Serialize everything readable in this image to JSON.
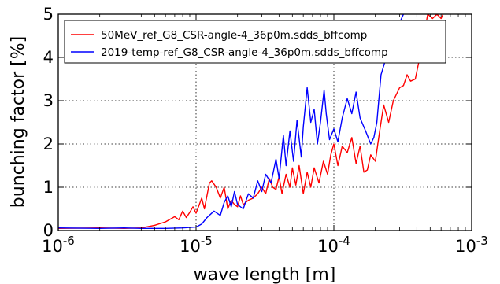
{
  "chart_data": {
    "type": "line",
    "title": "",
    "xlabel": "wave length [m]",
    "ylabel": "bunching factor [%]",
    "xscale": "log",
    "xlim": [
      1e-06,
      0.001
    ],
    "ylim": [
      0,
      5
    ],
    "grid": true,
    "legend_position": "top-left",
    "x_ticks": [
      {
        "base": "10",
        "exp": "-6"
      },
      {
        "base": "10",
        "exp": "-5"
      },
      {
        "base": "10",
        "exp": "-4"
      },
      {
        "base": "10",
        "exp": "-3"
      }
    ],
    "y_ticks": [
      "0",
      "1",
      "2",
      "3",
      "4",
      "5"
    ],
    "series": [
      {
        "name": "50MeV_ref_G8_CSR-angle-4_36p0m.sdds_bffcomp",
        "color": "#ff0000",
        "points": [
          [
            1e-06,
            0.05
          ],
          [
            2e-06,
            0.06
          ],
          [
            3e-06,
            0.05
          ],
          [
            4e-06,
            0.06
          ],
          [
            5e-06,
            0.12
          ],
          [
            6e-06,
            0.2
          ],
          [
            7e-06,
            0.32
          ],
          [
            7.5e-06,
            0.25
          ],
          [
            8e-06,
            0.45
          ],
          [
            8.5e-06,
            0.3
          ],
          [
            9e-06,
            0.42
          ],
          [
            9.5e-06,
            0.55
          ],
          [
            1e-05,
            0.4
          ],
          [
            1.1e-05,
            0.75
          ],
          [
            1.15e-05,
            0.5
          ],
          [
            1.25e-05,
            1.1
          ],
          [
            1.3e-05,
            1.15
          ],
          [
            1.4e-05,
            1.0
          ],
          [
            1.5e-05,
            0.75
          ],
          [
            1.6e-05,
            1.0
          ],
          [
            1.7e-05,
            0.5
          ],
          [
            1.8e-05,
            0.7
          ],
          [
            1.9e-05,
            0.6
          ],
          [
            2e-05,
            0.55
          ],
          [
            2.1e-05,
            0.8
          ],
          [
            2.2e-05,
            0.6
          ],
          [
            2.4e-05,
            0.7
          ],
          [
            2.6e-05,
            0.75
          ],
          [
            2.8e-05,
            0.85
          ],
          [
            3e-05,
            1.0
          ],
          [
            3.2e-05,
            0.85
          ],
          [
            3.4e-05,
            1.2
          ],
          [
            3.6e-05,
            1.0
          ],
          [
            3.8e-05,
            0.95
          ],
          [
            4e-05,
            1.25
          ],
          [
            4.2e-05,
            0.85
          ],
          [
            4.5e-05,
            1.3
          ],
          [
            4.8e-05,
            1.0
          ],
          [
            5e-05,
            1.45
          ],
          [
            5.3e-05,
            1.05
          ],
          [
            5.6e-05,
            1.5
          ],
          [
            6e-05,
            0.85
          ],
          [
            6.4e-05,
            1.35
          ],
          [
            6.8e-05,
            1.0
          ],
          [
            7.2e-05,
            1.45
          ],
          [
            7.8e-05,
            1.1
          ],
          [
            8.4e-05,
            1.6
          ],
          [
            9e-05,
            1.3
          ],
          [
            9.5e-05,
            1.75
          ],
          [
            0.0001,
            2.0
          ],
          [
            0.000107,
            1.5
          ],
          [
            0.000115,
            1.95
          ],
          [
            0.000125,
            1.8
          ],
          [
            0.000135,
            2.15
          ],
          [
            0.000145,
            1.55
          ],
          [
            0.000155,
            1.95
          ],
          [
            0.000165,
            1.35
          ],
          [
            0.000175,
            1.4
          ],
          [
            0.000185,
            1.75
          ],
          [
            0.0002,
            1.6
          ],
          [
            0.000215,
            2.3
          ],
          [
            0.00023,
            2.9
          ],
          [
            0.00025,
            2.5
          ],
          [
            0.00027,
            3.0
          ],
          [
            0.0003,
            3.3
          ],
          [
            0.00032,
            3.35
          ],
          [
            0.00034,
            3.6
          ],
          [
            0.00036,
            3.45
          ],
          [
            0.00039,
            3.5
          ],
          [
            0.00042,
            4.0
          ],
          [
            0.00045,
            4.5
          ],
          [
            0.00048,
            5.0
          ],
          [
            0.00052,
            4.9
          ],
          [
            0.00056,
            5.0
          ],
          [
            0.0006,
            4.9
          ],
          [
            0.00062,
            5.0
          ]
        ]
      },
      {
        "name": "2019-temp-ref_G8_CSR-angle-4_36p0m.sdds_bffcomp",
        "color": "#0000ff",
        "points": [
          [
            1e-06,
            0.06
          ],
          [
            2e-06,
            0.05
          ],
          [
            3e-06,
            0.06
          ],
          [
            4e-06,
            0.05
          ],
          [
            6e-06,
            0.05
          ],
          [
            8e-06,
            0.06
          ],
          [
            1e-05,
            0.08
          ],
          [
            1.1e-05,
            0.15
          ],
          [
            1.2e-05,
            0.3
          ],
          [
            1.35e-05,
            0.45
          ],
          [
            1.5e-05,
            0.35
          ],
          [
            1.6e-05,
            0.65
          ],
          [
            1.7e-05,
            0.8
          ],
          [
            1.8e-05,
            0.55
          ],
          [
            1.9e-05,
            0.9
          ],
          [
            2e-05,
            0.6
          ],
          [
            2.2e-05,
            0.5
          ],
          [
            2.4e-05,
            0.85
          ],
          [
            2.6e-05,
            0.75
          ],
          [
            2.8e-05,
            1.15
          ],
          [
            3e-05,
            0.9
          ],
          [
            3.2e-05,
            1.3
          ],
          [
            3.5e-05,
            1.1
          ],
          [
            3.8e-05,
            1.65
          ],
          [
            4e-05,
            1.2
          ],
          [
            4.3e-05,
            2.2
          ],
          [
            4.5e-05,
            1.5
          ],
          [
            4.8e-05,
            2.3
          ],
          [
            5.1e-05,
            1.6
          ],
          [
            5.4e-05,
            2.55
          ],
          [
            5.8e-05,
            1.7
          ],
          [
            6e-05,
            2.4
          ],
          [
            6.4e-05,
            3.3
          ],
          [
            6.8e-05,
            2.5
          ],
          [
            7.2e-05,
            2.8
          ],
          [
            7.6e-05,
            2.0
          ],
          [
            8e-05,
            2.5
          ],
          [
            8.5e-05,
            3.25
          ],
          [
            8.8e-05,
            2.7
          ],
          [
            9.3e-05,
            2.1
          ],
          [
            0.0001,
            2.35
          ],
          [
            0.000107,
            2.05
          ],
          [
            0.000115,
            2.6
          ],
          [
            0.000125,
            3.05
          ],
          [
            0.000135,
            2.7
          ],
          [
            0.000145,
            3.2
          ],
          [
            0.000155,
            2.6
          ],
          [
            0.00017,
            2.3
          ],
          [
            0.000185,
            2.0
          ],
          [
            0.000195,
            2.15
          ],
          [
            0.000205,
            2.5
          ],
          [
            0.00022,
            3.6
          ],
          [
            0.00024,
            4.0
          ],
          [
            0.00026,
            4.3
          ],
          [
            0.00028,
            4.6
          ],
          [
            0.0003,
            4.8
          ],
          [
            0.00032,
            5.0
          ]
        ]
      }
    ]
  }
}
